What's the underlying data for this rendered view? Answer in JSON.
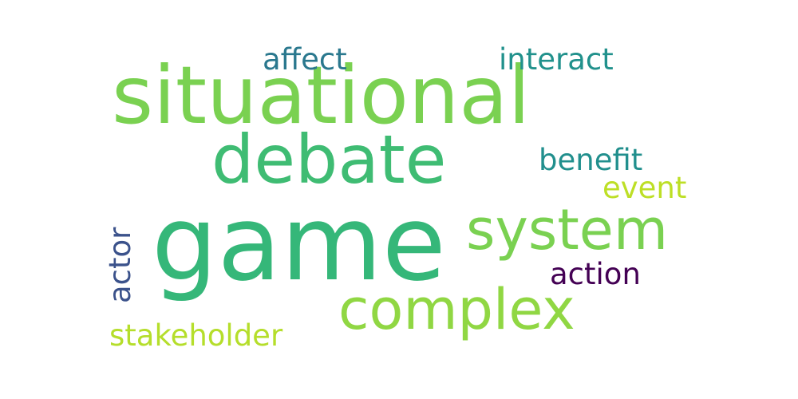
{
  "word_cloud": {
    "words": [
      {
        "id": "game",
        "text": "game",
        "color": "#35b779"
      },
      {
        "id": "situational",
        "text": "situational",
        "color": "#7ad151"
      },
      {
        "id": "debate",
        "text": "debate",
        "color": "#3fbc73"
      },
      {
        "id": "system",
        "text": "system",
        "color": "#7ad151"
      },
      {
        "id": "complex",
        "text": "complex",
        "color": "#90d743"
      },
      {
        "id": "stakeholder",
        "text": "stakeholder",
        "color": "#b5de2b"
      },
      {
        "id": "affect",
        "text": "affect",
        "color": "#2a788e"
      },
      {
        "id": "interact",
        "text": "interact",
        "color": "#21918c"
      },
      {
        "id": "benefit",
        "text": "benefit",
        "color": "#218f8d"
      },
      {
        "id": "event",
        "text": "event",
        "color": "#bddf26"
      },
      {
        "id": "actor",
        "text": "actor",
        "color": "#3b528b"
      },
      {
        "id": "action",
        "text": "action",
        "color": "#440154"
      }
    ]
  }
}
